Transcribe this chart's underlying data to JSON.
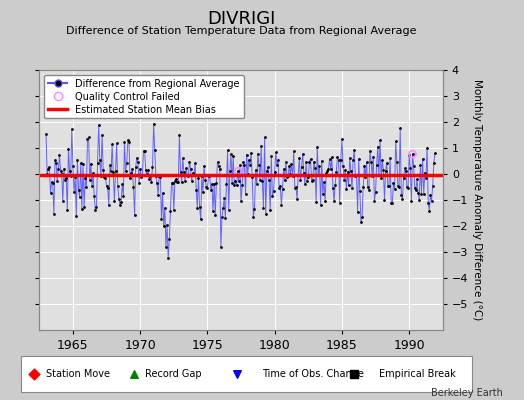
{
  "title": "DIVRIGI",
  "subtitle": "Difference of Station Temperature Data from Regional Average",
  "ylabel": "Monthly Temperature Anomaly Difference (°C)",
  "xlabel_years": [
    1965,
    1970,
    1975,
    1980,
    1985,
    1990
  ],
  "ylim": [
    -6,
    4
  ],
  "yticks_right": [
    -5,
    -4,
    -3,
    -2,
    -1,
    0,
    1,
    2,
    3,
    4
  ],
  "yticks_left": [
    -5,
    -4,
    -3,
    -2,
    -1,
    0,
    1,
    2,
    3,
    4
  ],
  "xstart": 1962.5,
  "xend": 1992.5,
  "bias_value": -0.05,
  "line_color": "#5555ff",
  "marker_color": "#000000",
  "bias_color": "#ff0000",
  "qc_color": "#ff88ff",
  "background_color": "#cccccc",
  "plot_bg_color": "#e0e0e0",
  "grid_color": "#ffffff",
  "watermark": "Berkeley Earth",
  "legend_top": [
    "Difference from Regional Average",
    "Quality Control Failed",
    "Estimated Station Mean Bias"
  ],
  "legend_bottom_labels": [
    "Station Move",
    "Record Gap",
    "Time of Obs. Change",
    "Empirical Break"
  ],
  "legend_bottom_colors": [
    "red",
    "green",
    "blue",
    "black"
  ],
  "legend_bottom_markers": [
    "D",
    "^",
    "v",
    "s"
  ]
}
